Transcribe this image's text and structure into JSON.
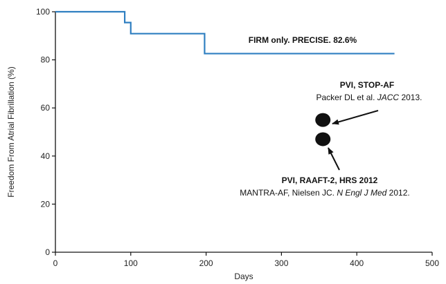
{
  "chart_data": {
    "type": "line",
    "xlabel": "Days",
    "ylabel": "Freedom From Atrial Fibrillation (%)",
    "xlim": [
      0,
      500
    ],
    "ylim": [
      0,
      100
    ],
    "xticks": [
      "0",
      "100",
      "200",
      "300",
      "400",
      "500"
    ],
    "yticks": [
      "0",
      "20",
      "40",
      "60",
      "80",
      "100"
    ],
    "grid": false,
    "series": [
      {
        "name": "FIRM only. PRECISE. 82.6%",
        "color": "#2f7fc1",
        "step": true,
        "x": [
          0,
          92,
          100,
          198,
          450
        ],
        "y": [
          100,
          95.5,
          90.9,
          82.6,
          82.6
        ]
      }
    ],
    "points": [
      {
        "name": "PVI, STOP-AF",
        "x": 355,
        "y": 55,
        "color": "#111111"
      },
      {
        "name": "PVI, RAAFT-2, HRS 2012",
        "x": 355,
        "y": 47,
        "color": "#111111"
      }
    ],
    "annotations": {
      "firm": "FIRM only. PRECISE. 82.6%",
      "stop_af_title": "PVI, STOP-AF",
      "stop_af_ref": {
        "pre": "Packer DL et al. ",
        "journal": "JACC",
        "year": " 2013."
      },
      "raaft_title": "PVI, RAAFT-2, HRS 2012",
      "raaft_ref": {
        "pre": "MANTRA-AF, Nielsen JC. ",
        "journal": "N Engl J Med",
        "year": " 2012."
      }
    }
  }
}
